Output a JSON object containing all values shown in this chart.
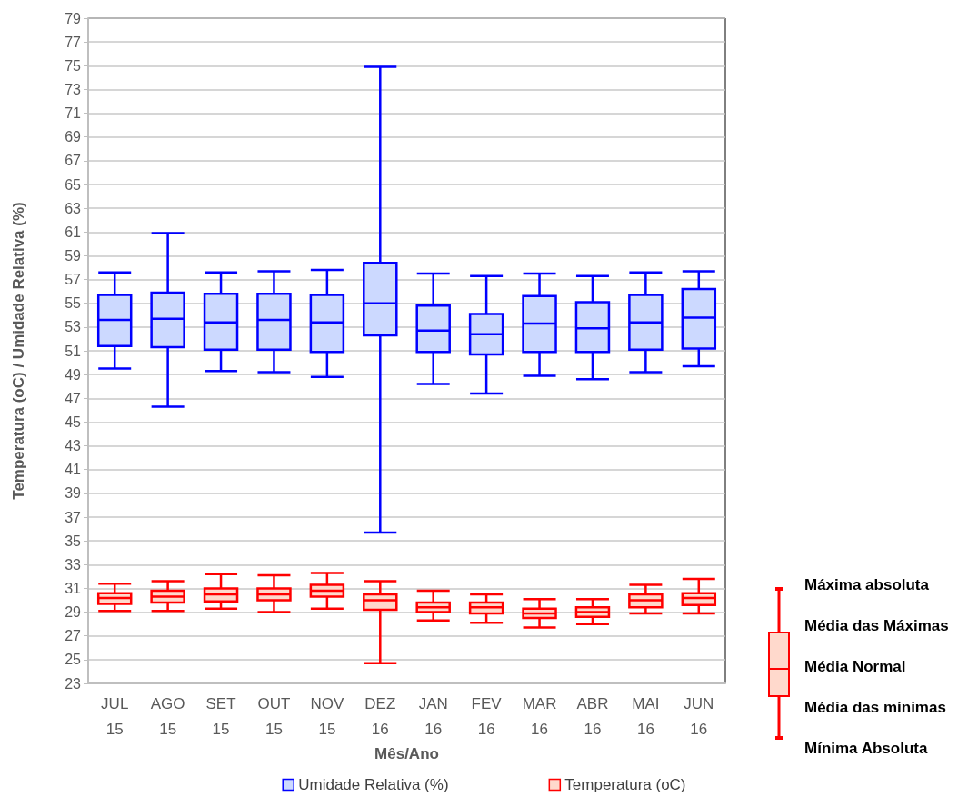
{
  "chart_data": {
    "type": "box",
    "xlabel": "Mês/Ano",
    "ylabel": "Temperatura (oC) / Umidade Relativa (%)",
    "categories": [
      "JUL 15",
      "AGO 15",
      "SET 15",
      "OUT 15",
      "NOV 15",
      "DEZ 16",
      "JAN 16",
      "FEV 16",
      "MAR 16",
      "ABR 16",
      "MAI 16",
      "JUN 16"
    ],
    "series": [
      {
        "name": "Umidade Relativa (%)",
        "color": "#0000ff",
        "boxes": [
          {
            "low": 49.5,
            "q1": 51.4,
            "median": 53.6,
            "q3": 55.7,
            "high": 57.6
          },
          {
            "low": 46.3,
            "q1": 51.3,
            "median": 53.7,
            "q3": 55.9,
            "high": 60.9
          },
          {
            "low": 49.3,
            "q1": 51.1,
            "median": 53.4,
            "q3": 55.8,
            "high": 57.6
          },
          {
            "low": 49.2,
            "q1": 51.1,
            "median": 53.6,
            "q3": 55.8,
            "high": 57.7
          },
          {
            "low": 48.8,
            "q1": 50.9,
            "median": 53.4,
            "q3": 55.7,
            "high": 57.8
          },
          {
            "low": 35.7,
            "q1": 52.3,
            "median": 55.0,
            "q3": 58.4,
            "high": 74.9
          },
          {
            "low": 48.2,
            "q1": 50.9,
            "median": 52.7,
            "q3": 54.8,
            "high": 57.5
          },
          {
            "low": 47.4,
            "q1": 50.7,
            "median": 52.4,
            "q3": 54.1,
            "high": 57.3
          },
          {
            "low": 48.9,
            "q1": 50.9,
            "median": 53.3,
            "q3": 55.6,
            "high": 57.5
          },
          {
            "low": 48.6,
            "q1": 50.9,
            "median": 52.9,
            "q3": 55.1,
            "high": 57.3
          },
          {
            "low": 49.2,
            "q1": 51.1,
            "median": 53.4,
            "q3": 55.7,
            "high": 57.6
          },
          {
            "low": 49.7,
            "q1": 51.2,
            "median": 53.8,
            "q3": 56.2,
            "high": 57.7
          }
        ]
      },
      {
        "name": "Temperatura (oC)",
        "color": "#ff0000",
        "boxes": [
          {
            "low": 29.1,
            "q1": 29.7,
            "median": 30.2,
            "q3": 30.6,
            "high": 31.4
          },
          {
            "low": 29.1,
            "q1": 29.8,
            "median": 30.3,
            "q3": 30.8,
            "high": 31.6
          },
          {
            "low": 29.3,
            "q1": 29.9,
            "median": 30.5,
            "q3": 31.0,
            "high": 32.2
          },
          {
            "low": 29.0,
            "q1": 30.0,
            "median": 30.5,
            "q3": 31.0,
            "high": 32.1
          },
          {
            "low": 29.3,
            "q1": 30.3,
            "median": 30.8,
            "q3": 31.3,
            "high": 32.3
          },
          {
            "low": 24.7,
            "q1": 29.2,
            "median": 30.0,
            "q3": 30.5,
            "high": 31.6
          },
          {
            "low": 28.3,
            "q1": 29.0,
            "median": 29.4,
            "q3": 29.8,
            "high": 30.8
          },
          {
            "low": 28.1,
            "q1": 28.9,
            "median": 29.4,
            "q3": 29.8,
            "high": 30.5
          },
          {
            "low": 27.7,
            "q1": 28.5,
            "median": 28.9,
            "q3": 29.3,
            "high": 30.1
          },
          {
            "low": 28.0,
            "q1": 28.6,
            "median": 29.0,
            "q3": 29.4,
            "high": 30.1
          },
          {
            "low": 28.9,
            "q1": 29.4,
            "median": 30.0,
            "q3": 30.5,
            "high": 31.3
          },
          {
            "low": 28.9,
            "q1": 29.6,
            "median": 30.2,
            "q3": 30.6,
            "high": 31.8
          }
        ]
      }
    ],
    "ylim": [
      23,
      79
    ],
    "yticks": [
      23,
      25,
      27,
      29,
      31,
      33,
      35,
      37,
      39,
      41,
      43,
      45,
      47,
      49,
      51,
      53,
      55,
      57,
      59,
      61,
      63,
      65,
      67,
      69,
      71,
      73,
      75,
      77,
      79
    ],
    "grid": "y",
    "legend": "bottom",
    "annotations": [
      "Máxima absoluta",
      "Média das Máximas",
      "Média Normal",
      "Média das mínimas",
      "Mínima Absoluta"
    ]
  }
}
